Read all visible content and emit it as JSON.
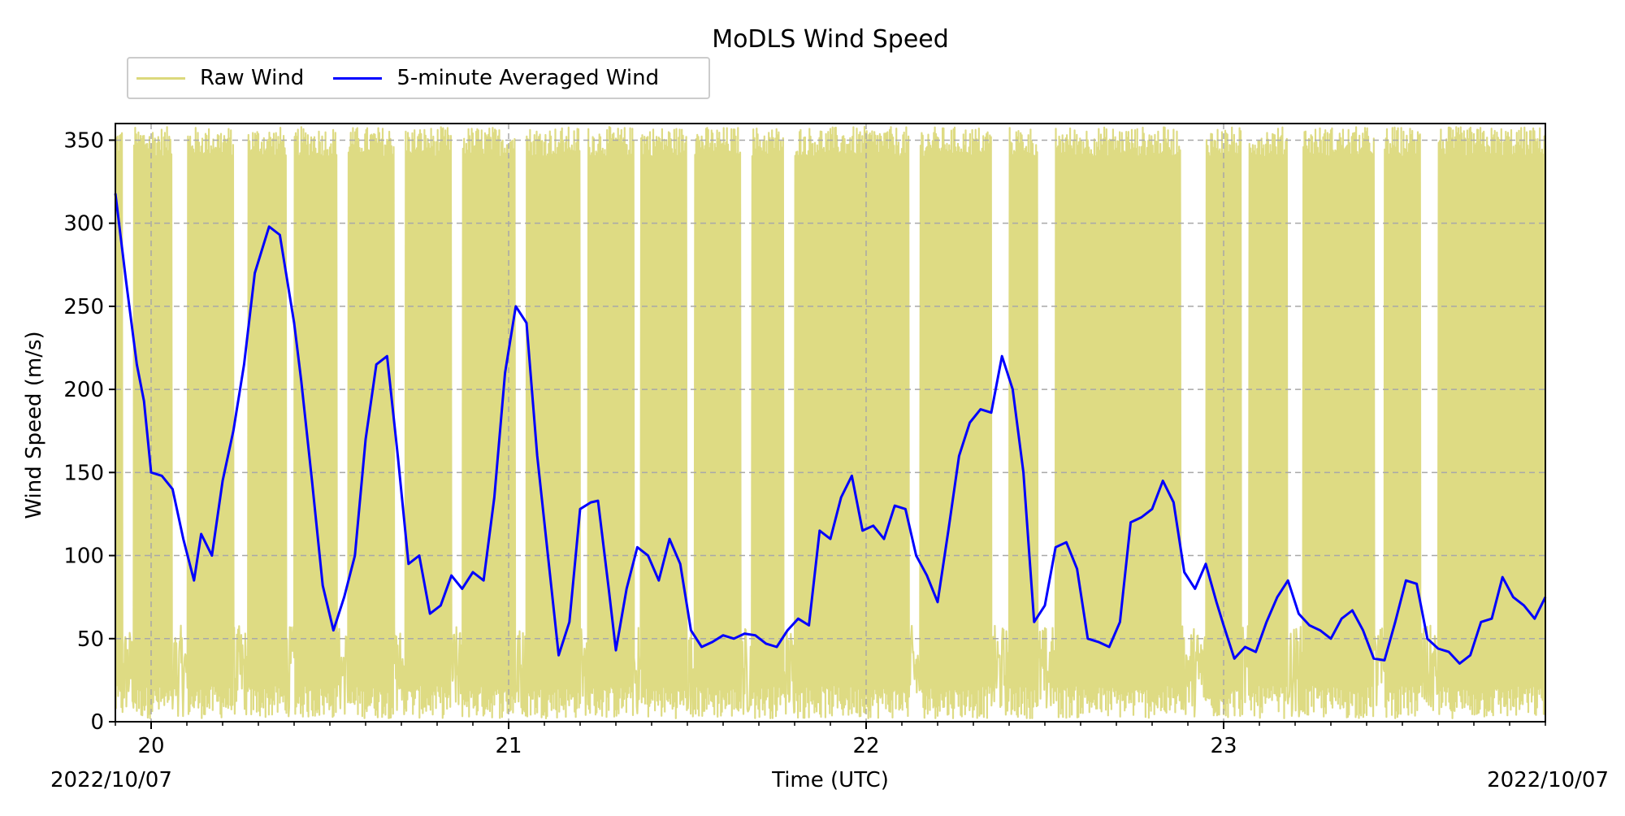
{
  "chart_data": {
    "type": "line",
    "title": "MoDLS Wind Speed",
    "xlabel": "Time (UTC)",
    "ylabel": "Wind Speed (m/s)",
    "x_start_label": "2022/10/07",
    "x_end_label": "2022/10/07",
    "xlim": [
      19.9,
      23.9
    ],
    "ylim": [
      0,
      360
    ],
    "x_ticks": [
      {
        "value": 20,
        "label": "20"
      },
      {
        "value": 21,
        "label": "21"
      },
      {
        "value": 22,
        "label": "22"
      },
      {
        "value": 23,
        "label": "23"
      }
    ],
    "y_ticks": [
      {
        "value": 0,
        "label": "0"
      },
      {
        "value": 50,
        "label": "50"
      },
      {
        "value": 100,
        "label": "100"
      },
      {
        "value": 150,
        "label": "150"
      },
      {
        "value": 200,
        "label": "200"
      },
      {
        "value": 250,
        "label": "250"
      },
      {
        "value": 300,
        "label": "300"
      },
      {
        "value": 350,
        "label": "350"
      }
    ],
    "grid": true,
    "legend_position": "top-left, above plot",
    "series": [
      {
        "name": "Raw Wind",
        "color": "#dcd97c",
        "style": "filled band of rapid oscillation between about 0 and 360 m/s; dense gaps where raw values remain low",
        "low_gaps": [
          [
            19.92,
            19.95
          ],
          [
            20.06,
            20.1
          ],
          [
            20.23,
            20.27
          ],
          [
            20.38,
            20.4
          ],
          [
            20.52,
            20.55
          ],
          [
            20.68,
            20.71
          ],
          [
            20.84,
            20.87
          ],
          [
            21.02,
            21.05
          ],
          [
            21.2,
            21.22
          ],
          [
            21.35,
            21.37
          ],
          [
            21.5,
            21.52
          ],
          [
            21.65,
            21.68
          ],
          [
            21.77,
            21.8
          ],
          [
            22.12,
            22.15
          ],
          [
            22.35,
            22.4
          ],
          [
            22.48,
            22.53
          ],
          [
            22.88,
            22.95
          ],
          [
            23.05,
            23.07
          ],
          [
            23.18,
            23.22
          ],
          [
            23.42,
            23.45
          ],
          [
            23.55,
            23.6
          ]
        ]
      },
      {
        "name": "5-minute Averaged Wind",
        "color": "#0000ff",
        "points": [
          [
            19.9,
            318
          ],
          [
            19.93,
            265
          ],
          [
            19.96,
            215
          ],
          [
            19.98,
            193
          ],
          [
            20.0,
            150
          ],
          [
            20.03,
            148
          ],
          [
            20.06,
            140
          ],
          [
            20.09,
            110
          ],
          [
            20.12,
            85
          ],
          [
            20.14,
            113
          ],
          [
            20.17,
            100
          ],
          [
            20.2,
            145
          ],
          [
            20.23,
            175
          ],
          [
            20.26,
            215
          ],
          [
            20.29,
            270
          ],
          [
            20.33,
            298
          ],
          [
            20.36,
            293
          ],
          [
            20.4,
            240
          ],
          [
            20.42,
            205
          ],
          [
            20.45,
            145
          ],
          [
            20.48,
            82
          ],
          [
            20.51,
            55
          ],
          [
            20.54,
            75
          ],
          [
            20.57,
            100
          ],
          [
            20.6,
            170
          ],
          [
            20.63,
            215
          ],
          [
            20.66,
            220
          ],
          [
            20.69,
            160
          ],
          [
            20.72,
            95
          ],
          [
            20.75,
            100
          ],
          [
            20.78,
            65
          ],
          [
            20.81,
            70
          ],
          [
            20.84,
            88
          ],
          [
            20.87,
            80
          ],
          [
            20.9,
            90
          ],
          [
            20.93,
            85
          ],
          [
            20.96,
            135
          ],
          [
            20.99,
            210
          ],
          [
            21.02,
            250
          ],
          [
            21.05,
            240
          ],
          [
            21.08,
            160
          ],
          [
            21.11,
            100
          ],
          [
            21.14,
            40
          ],
          [
            21.17,
            60
          ],
          [
            21.2,
            128
          ],
          [
            21.23,
            132
          ],
          [
            21.25,
            133
          ],
          [
            21.28,
            80
          ],
          [
            21.3,
            43
          ],
          [
            21.33,
            80
          ],
          [
            21.36,
            105
          ],
          [
            21.39,
            100
          ],
          [
            21.42,
            85
          ],
          [
            21.45,
            110
          ],
          [
            21.48,
            95
          ],
          [
            21.51,
            55
          ],
          [
            21.54,
            45
          ],
          [
            21.57,
            48
          ],
          [
            21.6,
            52
          ],
          [
            21.63,
            50
          ],
          [
            21.66,
            53
          ],
          [
            21.69,
            52
          ],
          [
            21.72,
            47
          ],
          [
            21.75,
            45
          ],
          [
            21.78,
            55
          ],
          [
            21.81,
            62
          ],
          [
            21.84,
            58
          ],
          [
            21.87,
            115
          ],
          [
            21.9,
            110
          ],
          [
            21.93,
            135
          ],
          [
            21.96,
            148
          ],
          [
            21.99,
            115
          ],
          [
            22.02,
            118
          ],
          [
            22.05,
            110
          ],
          [
            22.08,
            130
          ],
          [
            22.11,
            128
          ],
          [
            22.14,
            100
          ],
          [
            22.17,
            88
          ],
          [
            22.2,
            72
          ],
          [
            22.23,
            115
          ],
          [
            22.26,
            160
          ],
          [
            22.29,
            180
          ],
          [
            22.32,
            188
          ],
          [
            22.35,
            186
          ],
          [
            22.38,
            220
          ],
          [
            22.41,
            200
          ],
          [
            22.44,
            150
          ],
          [
            22.47,
            60
          ],
          [
            22.5,
            70
          ],
          [
            22.53,
            105
          ],
          [
            22.56,
            108
          ],
          [
            22.59,
            92
          ],
          [
            22.62,
            50
          ],
          [
            22.65,
            48
          ],
          [
            22.68,
            45
          ],
          [
            22.71,
            60
          ],
          [
            22.74,
            120
          ],
          [
            22.77,
            123
          ],
          [
            22.8,
            128
          ],
          [
            22.83,
            145
          ],
          [
            22.86,
            132
          ],
          [
            22.89,
            90
          ],
          [
            22.92,
            80
          ],
          [
            22.95,
            95
          ],
          [
            22.98,
            72
          ],
          [
            23.0,
            58
          ],
          [
            23.03,
            38
          ],
          [
            23.06,
            45
          ],
          [
            23.09,
            42
          ],
          [
            23.12,
            60
          ],
          [
            23.15,
            75
          ],
          [
            23.18,
            85
          ],
          [
            23.21,
            65
          ],
          [
            23.24,
            58
          ],
          [
            23.27,
            55
          ],
          [
            23.3,
            50
          ],
          [
            23.33,
            62
          ],
          [
            23.36,
            67
          ],
          [
            23.39,
            55
          ],
          [
            23.42,
            38
          ],
          [
            23.45,
            37
          ],
          [
            23.48,
            60
          ],
          [
            23.51,
            85
          ],
          [
            23.54,
            83
          ],
          [
            23.57,
            50
          ],
          [
            23.6,
            44
          ],
          [
            23.63,
            42
          ],
          [
            23.66,
            35
          ],
          [
            23.69,
            40
          ],
          [
            23.72,
            60
          ],
          [
            23.75,
            62
          ],
          [
            23.78,
            87
          ],
          [
            23.81,
            75
          ],
          [
            23.84,
            70
          ],
          [
            23.87,
            62
          ],
          [
            23.9,
            75
          ]
        ]
      }
    ]
  }
}
